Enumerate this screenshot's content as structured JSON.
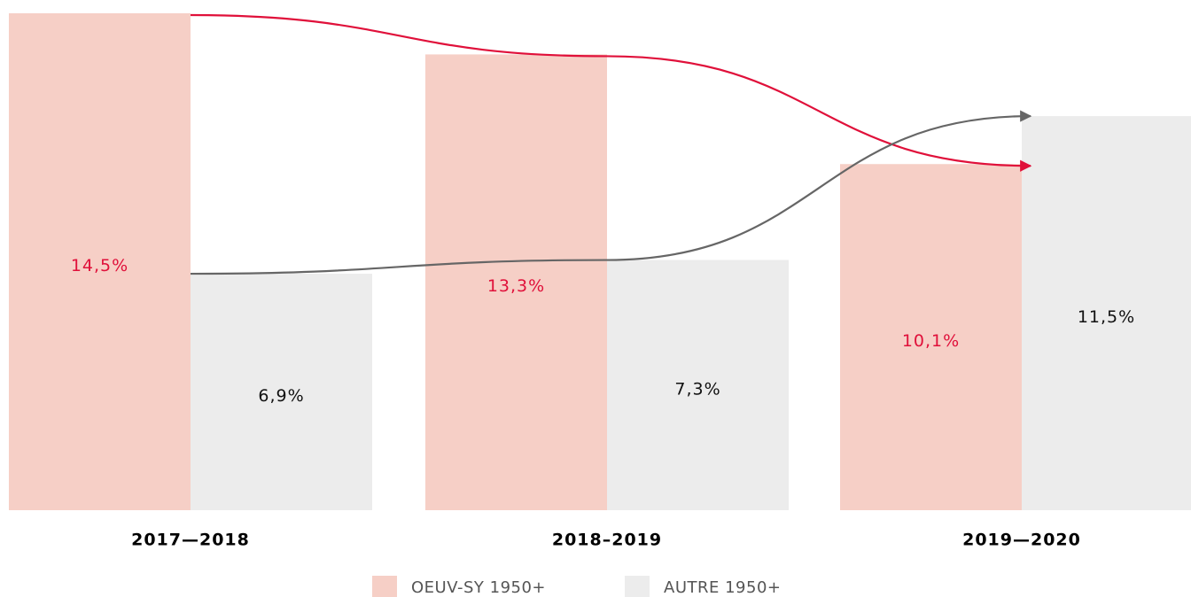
{
  "chart_data": {
    "type": "bar",
    "categories": [
      "2017—2018",
      "2018–2019",
      "2019—2020"
    ],
    "series": [
      {
        "name": "OEUV-SY 1950+",
        "color": "#f6cfc6",
        "line_color": "#e0103a",
        "values": [
          14.5,
          13.3,
          10.1
        ],
        "value_labels": [
          "14,5%",
          "13,3%",
          "10,1%"
        ]
      },
      {
        "name": "AUTRE 1950+",
        "color": "#ececec",
        "line_color": "#666666",
        "values": [
          6.9,
          7.3,
          11.5
        ],
        "value_labels": [
          "6,9%",
          "7,3%",
          "11,5%"
        ]
      }
    ],
    "ylim": [
      0,
      14.5
    ]
  }
}
